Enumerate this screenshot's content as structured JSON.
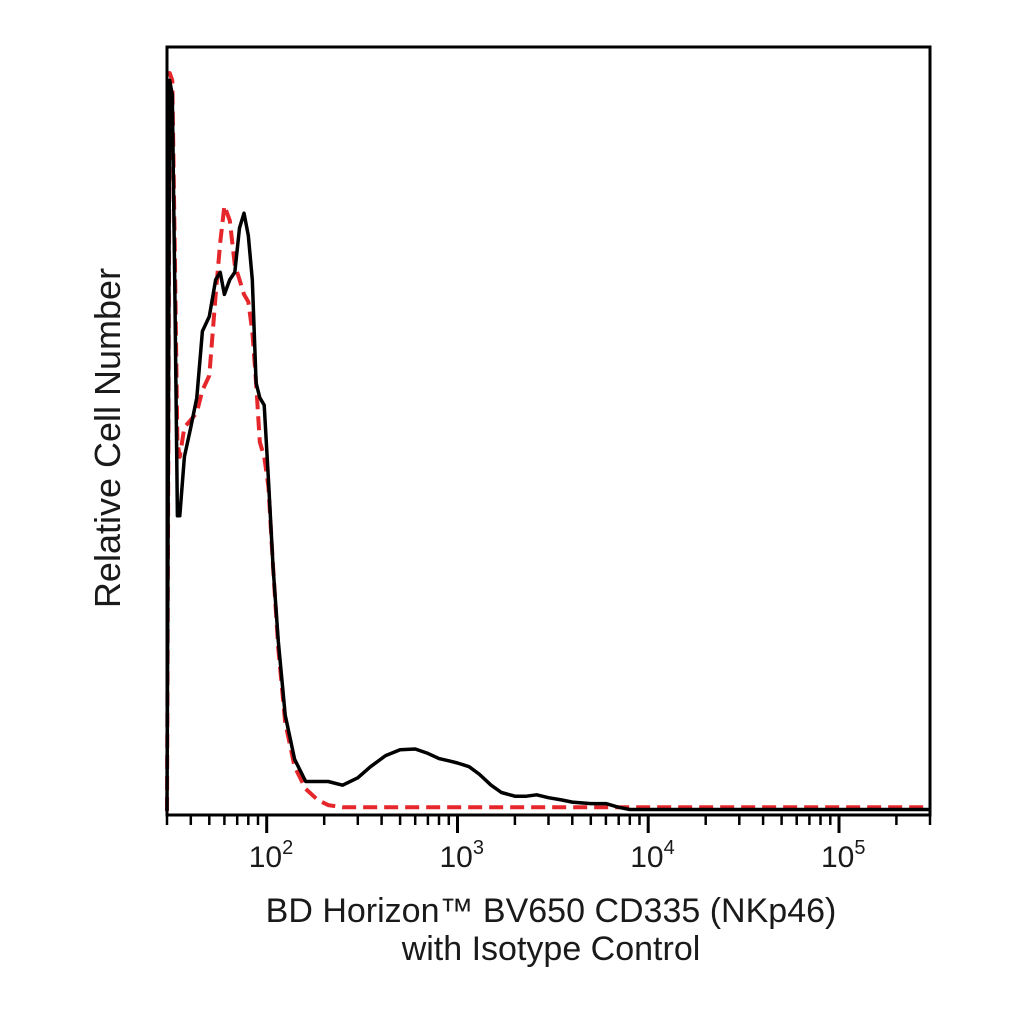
{
  "chart_data": {
    "type": "line",
    "title": "",
    "ylabel": "Relative Cell Number",
    "xlabel_lines": [
      "BD Horizon™ BV650  CD335 (NKp46)",
      "with Isotype Control"
    ],
    "x_scale": "log",
    "xlim": [
      30,
      300000
    ],
    "ylim": [
      0,
      100
    ],
    "tick_labels": [
      {
        "value": 100,
        "base": "10",
        "exp": "2"
      },
      {
        "value": 1000,
        "base": "10",
        "exp": "3"
      },
      {
        "value": 10000,
        "base": "10",
        "exp": "4"
      },
      {
        "value": 100000,
        "base": "10",
        "exp": "5"
      }
    ],
    "grid": false,
    "legend": "none",
    "series": [
      {
        "color": "#000000",
        "style": "solid",
        "x": [
          30,
          31,
          32,
          33,
          34,
          35,
          37,
          40,
          43,
          46,
          50,
          54,
          57,
          60,
          64,
          68,
          72,
          76,
          80,
          84,
          88,
          92,
          97,
          102,
          108,
          115,
          125,
          140,
          160,
          185,
          210,
          250,
          300,
          350,
          420,
          500,
          600,
          700,
          800,
          900,
          1000,
          1150,
          1300,
          1500,
          1700,
          2000,
          2300,
          2600,
          3000,
          3500,
          4000,
          5000,
          6000,
          7000,
          8000,
          10000,
          20000,
          50000,
          100000,
          300000
        ],
        "y": [
          0,
          99,
          97,
          70,
          40,
          40,
          48,
          52,
          56,
          65,
          67,
          72,
          73,
          70,
          72,
          73,
          79,
          81,
          78,
          72,
          58,
          56,
          55,
          45,
          33,
          23,
          13,
          7,
          4,
          4,
          4,
          3.5,
          4.5,
          6,
          7.5,
          8.3,
          8.4,
          7.8,
          7.1,
          6.8,
          6.5,
          6,
          5,
          3.5,
          2.5,
          2,
          2,
          2.2,
          1.8,
          1.5,
          1.2,
          1,
          1,
          0.5,
          0.2,
          0.2,
          0.2,
          0.2,
          0.2,
          0.2
        ]
      },
      {
        "color": "#e5262b",
        "style": "dashed",
        "x": [
          30,
          31,
          32,
          33,
          34,
          35,
          37,
          40,
          43,
          46,
          50,
          54,
          57,
          60,
          64,
          68,
          72,
          76,
          80,
          84,
          88,
          92,
          97,
          102,
          108,
          115,
          125,
          140,
          160,
          185,
          210,
          250,
          300,
          400,
          600,
          1000,
          2000,
          5000,
          10000,
          300000
        ],
        "y": [
          0,
          100,
          99,
          75,
          50,
          48,
          52,
          53,
          54,
          57,
          59,
          70,
          77,
          82,
          80,
          74,
          72,
          70,
          69,
          65,
          58,
          50,
          48,
          44,
          33,
          22,
          12,
          6,
          3,
          1.5,
          0.8,
          0.5,
          0.5,
          0.5,
          0.5,
          0.5,
          0.5,
          0.5,
          0.5,
          0.5
        ]
      }
    ]
  }
}
